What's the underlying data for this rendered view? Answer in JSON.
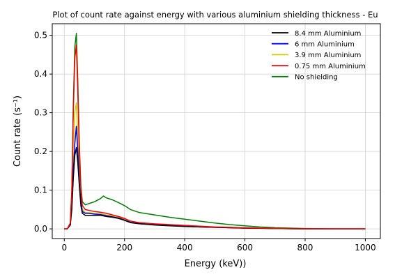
{
  "chart_data": {
    "type": "line",
    "title": "Plot of count rate against energy with various aluminium shielding thickness - Eu",
    "xlabel": "Energy (keV))",
    "ylabel": "Count rate (s⁻¹)",
    "xlim": [
      -40,
      1050
    ],
    "ylim": [
      -0.025,
      0.53
    ],
    "xticks": [
      0,
      200,
      400,
      600,
      800,
      1000
    ],
    "yticks": [
      0.0,
      0.1,
      0.2,
      0.3,
      0.4,
      0.5
    ],
    "grid": true,
    "legend_position": "top-right",
    "series": [
      {
        "name": "8.4 mm Aluminium",
        "color": "#000000",
        "x": [
          0,
          10,
          20,
          25,
          30,
          35,
          40,
          45,
          50,
          55,
          60,
          70,
          80,
          100,
          120,
          140,
          160,
          180,
          200,
          220,
          250,
          300,
          350,
          400,
          450,
          500,
          600,
          700,
          800,
          900,
          1000
        ],
        "y": [
          0.0,
          0.0,
          0.01,
          0.05,
          0.13,
          0.19,
          0.21,
          0.17,
          0.11,
          0.06,
          0.04,
          0.035,
          0.035,
          0.035,
          0.035,
          0.032,
          0.03,
          0.027,
          0.022,
          0.016,
          0.013,
          0.01,
          0.008,
          0.006,
          0.005,
          0.004,
          0.002,
          0.001,
          0.0,
          0.0,
          0.0
        ]
      },
      {
        "name": "6 mm Aluminium",
        "color": "#0000ff",
        "x": [
          0,
          10,
          20,
          25,
          30,
          35,
          40,
          45,
          50,
          55,
          60,
          70,
          80,
          100,
          120,
          140,
          160,
          180,
          200,
          220,
          250,
          300,
          350,
          400,
          450,
          500,
          600,
          700,
          800,
          900,
          1000
        ],
        "y": [
          0.0,
          0.0,
          0.01,
          0.06,
          0.15,
          0.22,
          0.265,
          0.2,
          0.12,
          0.07,
          0.045,
          0.04,
          0.04,
          0.038,
          0.037,
          0.034,
          0.031,
          0.028,
          0.023,
          0.017,
          0.014,
          0.011,
          0.009,
          0.007,
          0.005,
          0.004,
          0.002,
          0.001,
          0.0,
          0.0,
          0.0
        ]
      },
      {
        "name": "3.9 mm Aluminium",
        "color": "#cccc00",
        "x": [
          0,
          10,
          20,
          25,
          30,
          35,
          40,
          45,
          50,
          55,
          60,
          70,
          80,
          100,
          120,
          140,
          160,
          180,
          200,
          220,
          250,
          300,
          350,
          400,
          450,
          500,
          600,
          700,
          800,
          900,
          1000
        ],
        "y": [
          0.0,
          0.0,
          0.012,
          0.07,
          0.2,
          0.3,
          0.325,
          0.24,
          0.14,
          0.075,
          0.05,
          0.042,
          0.042,
          0.04,
          0.039,
          0.036,
          0.033,
          0.03,
          0.025,
          0.019,
          0.015,
          0.012,
          0.01,
          0.008,
          0.006,
          0.004,
          0.002,
          0.001,
          0.0,
          0.0,
          0.0
        ]
      },
      {
        "name": "0.75 mm Aluminium",
        "color": "#ff0000",
        "x": [
          0,
          10,
          20,
          25,
          30,
          35,
          40,
          45,
          50,
          55,
          60,
          70,
          80,
          100,
          120,
          140,
          160,
          180,
          200,
          220,
          250,
          300,
          350,
          400,
          450,
          500,
          600,
          700,
          800,
          900,
          1000
        ],
        "y": [
          0.0,
          0.0,
          0.015,
          0.1,
          0.3,
          0.44,
          0.475,
          0.35,
          0.2,
          0.1,
          0.06,
          0.05,
          0.048,
          0.045,
          0.043,
          0.04,
          0.036,
          0.032,
          0.027,
          0.02,
          0.016,
          0.013,
          0.011,
          0.009,
          0.007,
          0.005,
          0.003,
          0.001,
          0.0,
          0.0,
          0.0
        ]
      },
      {
        "name": "No shielding",
        "color": "#008000",
        "x": [
          0,
          10,
          20,
          25,
          30,
          35,
          40,
          45,
          50,
          55,
          60,
          70,
          80,
          100,
          120,
          130,
          140,
          160,
          180,
          200,
          220,
          250,
          300,
          350,
          400,
          450,
          500,
          550,
          600,
          650,
          700,
          800,
          900,
          1000
        ],
        "y": [
          0.0,
          0.0,
          0.015,
          0.1,
          0.32,
          0.47,
          0.505,
          0.38,
          0.22,
          0.11,
          0.07,
          0.062,
          0.065,
          0.07,
          0.078,
          0.085,
          0.08,
          0.075,
          0.068,
          0.06,
          0.05,
          0.042,
          0.036,
          0.03,
          0.025,
          0.02,
          0.015,
          0.011,
          0.008,
          0.005,
          0.003,
          0.001,
          0.0,
          0.0
        ]
      }
    ]
  }
}
